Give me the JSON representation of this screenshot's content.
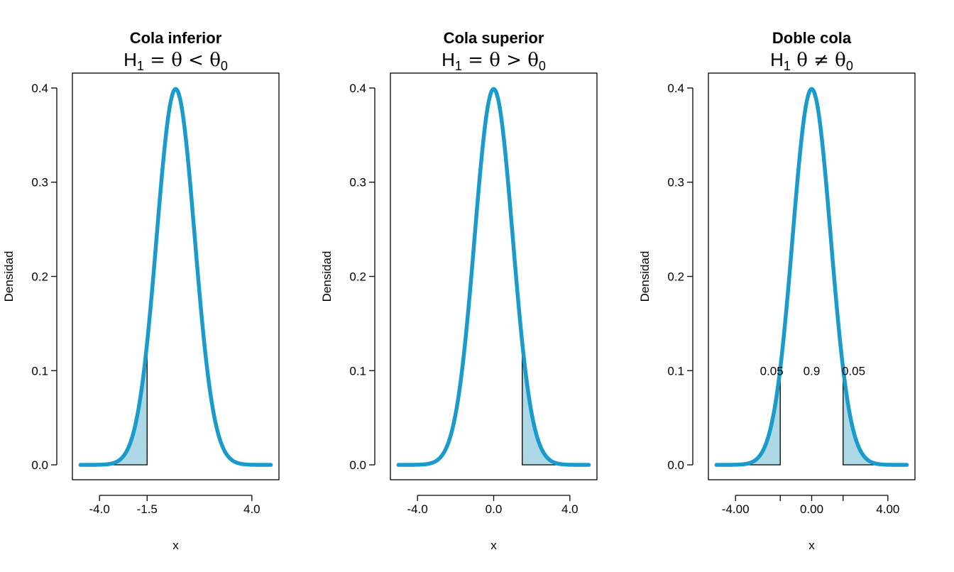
{
  "colors": {
    "curve": "#1a9bcc",
    "fill": "#add8e6",
    "axis": "#000000"
  },
  "chart_data": [
    {
      "type": "area",
      "title": "Cola inferior",
      "subtitle": {
        "lhs": "H",
        "sub": "1",
        "rest": " = θ < θ",
        "sub2": "0"
      },
      "xlabel": "x",
      "ylabel": "Densidad",
      "xlim": [
        -5,
        5
      ],
      "ylim": [
        0,
        0.4
      ],
      "x_ticks": [
        -4.0,
        -1.5,
        4.0
      ],
      "x_tick_labels": [
        "-4.0",
        "-1.5",
        "4.0"
      ],
      "y_ticks": [
        0.0,
        0.1,
        0.2,
        0.3,
        0.4
      ],
      "y_tick_labels": [
        "0.0",
        "0.1",
        "0.2",
        "0.3",
        "0.4"
      ],
      "curve": {
        "distribution": "normal",
        "mean": 0,
        "sd": 1
      },
      "shaded_regions": [
        {
          "from": -5,
          "to": -1.5
        }
      ],
      "annotations": []
    },
    {
      "type": "area",
      "title": "Cola superior",
      "subtitle": {
        "lhs": "H",
        "sub": "1",
        "rest": " = θ > θ",
        "sub2": "0"
      },
      "xlabel": "x",
      "ylabel": "Densidad",
      "xlim": [
        -5,
        5
      ],
      "ylim": [
        0,
        0.4
      ],
      "x_ticks": [
        -4.0,
        0.0,
        4.0
      ],
      "x_tick_labels": [
        "-4.0",
        "0.0",
        "4.0"
      ],
      "y_ticks": [
        0.0,
        0.1,
        0.2,
        0.3,
        0.4
      ],
      "y_tick_labels": [
        "0.0",
        "0.1",
        "0.2",
        "0.3",
        "0.4"
      ],
      "curve": {
        "distribution": "normal",
        "mean": 0,
        "sd": 1
      },
      "shaded_regions": [
        {
          "from": 1.5,
          "to": 5
        }
      ],
      "annotations": []
    },
    {
      "type": "area",
      "title": "Doble cola",
      "subtitle": {
        "lhs": "H",
        "sub": "1",
        "rest": " θ ≠ θ",
        "sub2": "0"
      },
      "xlabel": "x",
      "ylabel": "Densidad",
      "xlim": [
        -5,
        5
      ],
      "ylim": [
        0,
        0.4
      ],
      "x_ticks": [
        -4.0,
        -1.65,
        0.0,
        1.65,
        4.0
      ],
      "x_tick_labels": [
        "-4.00",
        "",
        "0.00",
        "",
        "4.00"
      ],
      "y_ticks": [
        0.0,
        0.1,
        0.2,
        0.3,
        0.4
      ],
      "y_tick_labels": [
        "0.0",
        "0.1",
        "0.2",
        "0.3",
        "0.4"
      ],
      "curve": {
        "distribution": "normal",
        "mean": 0,
        "sd": 1
      },
      "shaded_regions": [
        {
          "from": -5,
          "to": -1.65
        },
        {
          "from": 1.65,
          "to": 5
        }
      ],
      "annotations": [
        {
          "text": "0.05",
          "x": -2.1,
          "y": 0.1
        },
        {
          "text": "0.9",
          "x": 0.0,
          "y": 0.1
        },
        {
          "text": "0.05",
          "x": 2.2,
          "y": 0.1
        }
      ]
    }
  ]
}
